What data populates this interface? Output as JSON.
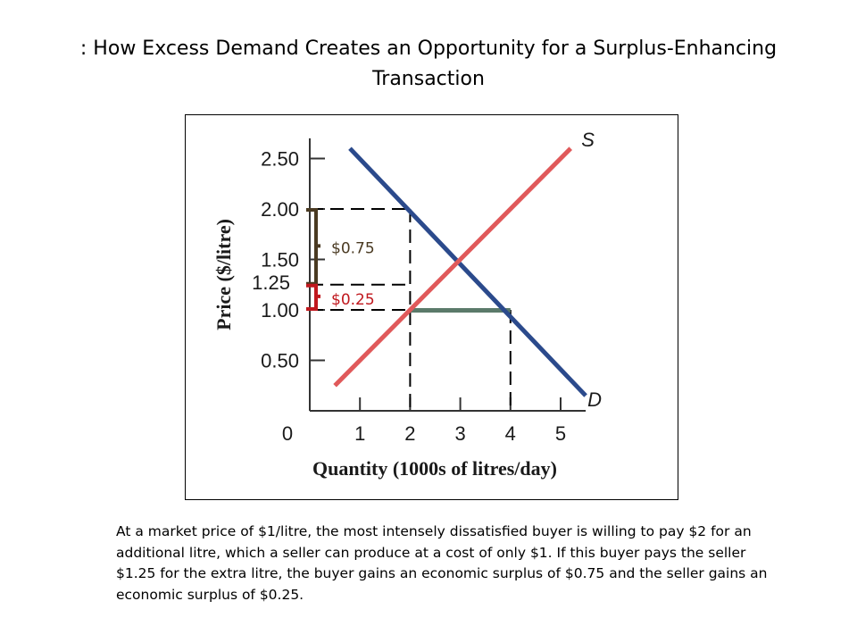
{
  "page": {
    "title": ": How Excess Demand Creates an Opportunity for a Surplus-Enhancing Transaction",
    "caption": "At a market price of $1/litre, the most intensely dissatisfied buyer is willing to pay $2 for an additional litre, which a seller can produce at a cost of only $1. If this buyer pays the seller $1.25 for the extra litre, the buyer gains an economic surplus of $0.75 and the seller gains an economic surplus of $0.25."
  },
  "colors": {
    "demand": "#2b4a8c",
    "supply": "#e0595a",
    "buyer_brace": "#4a3a22",
    "seller_brace": "#c0181e",
    "shortage_bar": "#5b7a6a"
  },
  "chart_data": {
    "type": "line",
    "title": "",
    "xlabel": "Quantity (1000s of litres/day)",
    "ylabel": "Price ($/litre)",
    "xlim": [
      0,
      5.5
    ],
    "ylim": [
      0,
      2.7
    ],
    "x_ticks": [
      1,
      2,
      3,
      4,
      5
    ],
    "y_ticks": [
      0.5,
      1.0,
      1.5,
      2.0,
      2.5
    ],
    "x_tick_labels": [
      "1",
      "2",
      "3",
      "4",
      "5"
    ],
    "y_tick_labels": [
      "0.50",
      "1.00",
      "1.50",
      "2.00",
      "2.50"
    ],
    "origin_label": "0",
    "grid": false,
    "series": [
      {
        "name": "D",
        "points": [
          [
            0.8,
            2.6
          ],
          [
            5.5,
            0.15
          ]
        ]
      },
      {
        "name": "S",
        "points": [
          [
            0.5,
            0.25
          ],
          [
            5.2,
            2.6
          ]
        ]
      }
    ],
    "reference_lines": [
      {
        "from": [
          0,
          2.0
        ],
        "to": [
          2,
          2.0
        ]
      },
      {
        "from": [
          2,
          2.0
        ],
        "to": [
          2,
          0
        ]
      },
      {
        "from": [
          0,
          1.25
        ],
        "to": [
          2,
          1.25
        ]
      },
      {
        "from": [
          0,
          1.0
        ],
        "to": [
          4,
          1.0
        ]
      },
      {
        "from": [
          4,
          1.0
        ],
        "to": [
          4,
          0
        ]
      }
    ],
    "shortage": {
      "price": 1.0,
      "from_quantity": 2,
      "to_quantity": 4
    },
    "annotations": [
      {
        "text": "$0.75",
        "from_price": 1.25,
        "to_price": 2.0,
        "meaning": "buyer surplus"
      },
      {
        "text": "$0.25",
        "from_price": 1.0,
        "to_price": 1.25,
        "meaning": "seller surplus"
      },
      {
        "text": "1.25",
        "price": 1.25
      }
    ]
  }
}
